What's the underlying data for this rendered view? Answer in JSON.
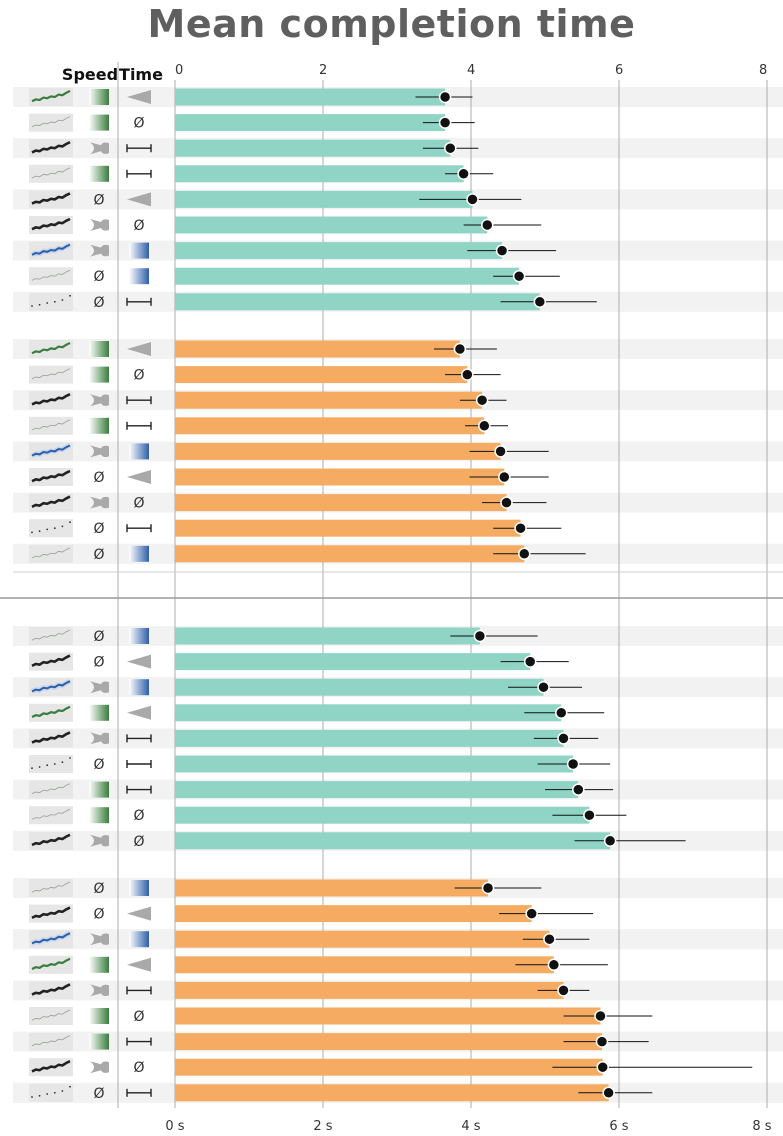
{
  "title": "Mean completion time",
  "chart_data": {
    "type": "bar",
    "columns": {
      "speed": "Speed",
      "time": "Time"
    },
    "top_axis_ticks": [
      "0",
      "2",
      "4",
      "6",
      "8"
    ],
    "bottom_axis_ticks": [
      "0 s",
      "2 s",
      "4 s",
      "6 s",
      "8 s"
    ],
    "xlim": [
      0,
      8
    ],
    "grid": true,
    "colors": {
      "teal": "#8fd4c4",
      "orange": "#f5ac62",
      "green": "#3a7d3e",
      "blue": "#2f5fa8",
      "gray": "#b8b8b8"
    },
    "panels": [
      {
        "groups": [
          {
            "color": "teal",
            "rows": [
              {
                "thumb": "green",
                "speed": "green",
                "time": "wedge",
                "mean": 3.65,
                "ci": [
                  3.25,
                  4.02
                ]
              },
              {
                "thumb": "light",
                "speed": "green",
                "time": "none",
                "mean": 3.65,
                "ci": [
                  3.35,
                  4.05
                ]
              },
              {
                "thumb": "dark",
                "speed": "bone",
                "time": "bar",
                "mean": 3.72,
                "ci": [
                  3.35,
                  4.1
                ]
              },
              {
                "thumb": "light",
                "speed": "green",
                "time": "bar",
                "mean": 3.9,
                "ci": [
                  3.65,
                  4.3
                ]
              },
              {
                "thumb": "dark",
                "speed": "none",
                "time": "wedge",
                "mean": 4.02,
                "ci": [
                  3.3,
                  4.68
                ]
              },
              {
                "thumb": "dark",
                "speed": "bone",
                "time": "none",
                "mean": 4.22,
                "ci": [
                  3.9,
                  4.95
                ]
              },
              {
                "thumb": "blue",
                "speed": "bone",
                "time": "blue",
                "mean": 4.42,
                "ci": [
                  3.95,
                  5.15
                ]
              },
              {
                "thumb": "light",
                "speed": "none",
                "time": "blue",
                "mean": 4.65,
                "ci": [
                  4.3,
                  5.2
                ]
              },
              {
                "thumb": "dots",
                "speed": "none",
                "time": "bar",
                "mean": 4.93,
                "ci": [
                  4.4,
                  5.7
                ]
              }
            ]
          },
          {
            "color": "orange",
            "rows": [
              {
                "thumb": "green",
                "speed": "green",
                "time": "wedge",
                "mean": 3.85,
                "ci": [
                  3.5,
                  4.35
                ]
              },
              {
                "thumb": "light",
                "speed": "green",
                "time": "none",
                "mean": 3.95,
                "ci": [
                  3.65,
                  4.4
                ]
              },
              {
                "thumb": "dark",
                "speed": "bone",
                "time": "bar",
                "mean": 4.15,
                "ci": [
                  3.85,
                  4.48
                ]
              },
              {
                "thumb": "light",
                "speed": "green",
                "time": "bar",
                "mean": 4.18,
                "ci": [
                  3.92,
                  4.5
                ]
              },
              {
                "thumb": "blue",
                "speed": "bone",
                "time": "blue",
                "mean": 4.4,
                "ci": [
                  3.98,
                  5.05
                ]
              },
              {
                "thumb": "dark",
                "speed": "none",
                "time": "wedge",
                "mean": 4.45,
                "ci": [
                  3.98,
                  5.05
                ]
              },
              {
                "thumb": "dark",
                "speed": "bone",
                "time": "none",
                "mean": 4.48,
                "ci": [
                  4.15,
                  5.02
                ]
              },
              {
                "thumb": "dots",
                "speed": "none",
                "time": "bar",
                "mean": 4.67,
                "ci": [
                  4.3,
                  5.22
                ]
              },
              {
                "thumb": "light",
                "speed": "none",
                "time": "blue",
                "mean": 4.72,
                "ci": [
                  4.3,
                  5.55
                ]
              }
            ]
          }
        ]
      },
      {
        "groups": [
          {
            "color": "teal",
            "rows": [
              {
                "thumb": "light",
                "speed": "none",
                "time": "blue",
                "mean": 4.12,
                "ci": [
                  3.72,
                  4.9
                ]
              },
              {
                "thumb": "dark",
                "speed": "none",
                "time": "wedge",
                "mean": 4.8,
                "ci": [
                  4.4,
                  5.32
                ]
              },
              {
                "thumb": "blue",
                "speed": "bone",
                "time": "blue",
                "mean": 4.98,
                "ci": [
                  4.5,
                  5.5
                ]
              },
              {
                "thumb": "green",
                "speed": "green",
                "time": "wedge",
                "mean": 5.22,
                "ci": [
                  4.72,
                  5.8
                ]
              },
              {
                "thumb": "dark",
                "speed": "bone",
                "time": "bar",
                "mean": 5.25,
                "ci": [
                  4.85,
                  5.72
                ]
              },
              {
                "thumb": "dots",
                "speed": "none",
                "time": "bar",
                "mean": 5.38,
                "ci": [
                  4.9,
                  5.88
                ]
              },
              {
                "thumb": "light",
                "speed": "green",
                "time": "bar",
                "mean": 5.45,
                "ci": [
                  5.0,
                  5.92
                ]
              },
              {
                "thumb": "light",
                "speed": "green",
                "time": "none",
                "mean": 5.6,
                "ci": [
                  5.1,
                  6.1
                ]
              },
              {
                "thumb": "dark",
                "speed": "bone",
                "time": "none",
                "mean": 5.88,
                "ci": [
                  5.4,
                  6.9
                ]
              }
            ]
          },
          {
            "color": "orange",
            "rows": [
              {
                "thumb": "light",
                "speed": "none",
                "time": "blue",
                "mean": 4.23,
                "ci": [
                  3.78,
                  4.95
                ]
              },
              {
                "thumb": "dark",
                "speed": "none",
                "time": "wedge",
                "mean": 4.82,
                "ci": [
                  4.38,
                  5.65
                ]
              },
              {
                "thumb": "blue",
                "speed": "bone",
                "time": "blue",
                "mean": 5.06,
                "ci": [
                  4.7,
                  5.6
                ]
              },
              {
                "thumb": "green",
                "speed": "green",
                "time": "wedge",
                "mean": 5.12,
                "ci": [
                  4.6,
                  5.85
                ]
              },
              {
                "thumb": "dark",
                "speed": "bone",
                "time": "bar",
                "mean": 5.25,
                "ci": [
                  4.9,
                  5.6
                ]
              },
              {
                "thumb": "light",
                "speed": "green",
                "time": "none",
                "mean": 5.75,
                "ci": [
                  5.25,
                  6.45
                ]
              },
              {
                "thumb": "light",
                "speed": "green",
                "time": "bar",
                "mean": 5.77,
                "ci": [
                  5.25,
                  6.4
                ]
              },
              {
                "thumb": "dark",
                "speed": "bone",
                "time": "none",
                "mean": 5.78,
                "ci": [
                  5.1,
                  7.8
                ]
              },
              {
                "thumb": "dots",
                "speed": "none",
                "time": "bar",
                "mean": 5.86,
                "ci": [
                  5.45,
                  6.45
                ]
              }
            ]
          }
        ]
      }
    ]
  }
}
